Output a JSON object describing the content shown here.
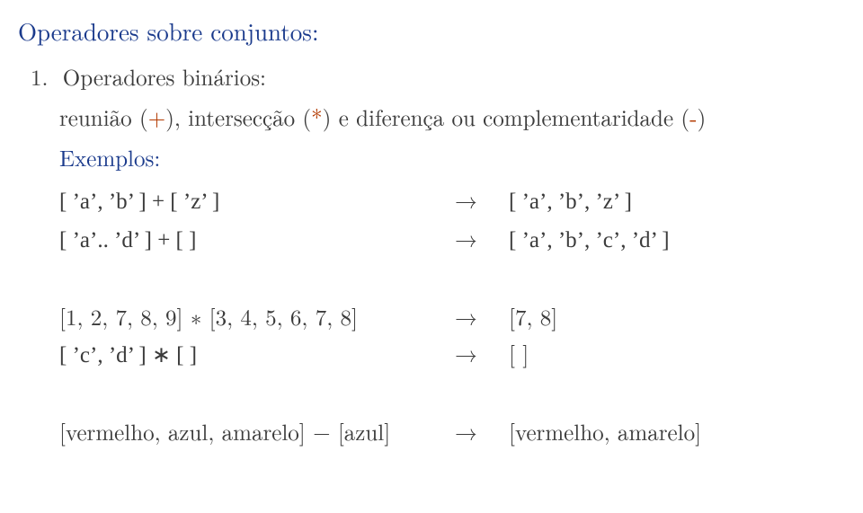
{
  "heading": "Operadores sobre conjuntos:",
  "item_number": "1.",
  "item_title": "Operadores binários:",
  "subline_pre": "reunião (",
  "plus_sym": "+",
  "subline_mid1": "), intersecção (",
  "star_sym": "*",
  "subline_mid2": ") e diferença ou complementaridade (",
  "minus_sym": "-",
  "subline_post": ")",
  "exemplos_label": "Exemplos:",
  "arrow": "→",
  "block1": {
    "rows": [
      {
        "lhs": "[ 'a', 'b' ] + [ 'z' ]",
        "rhs": "[ 'a', 'b', 'z' ]"
      },
      {
        "lhs": "[ 'a'.. 'd' ] + [ ]",
        "rhs": "[ 'a', 'b', 'c', 'd' ]"
      }
    ]
  },
  "block2": {
    "rows": [
      {
        "lhs": "[1, 2, 7, 8, 9] ∗ [3, 4, 5, 6, 7, 8]",
        "rhs": "[7, 8]"
      },
      {
        "lhs": "[ 'c', 'd' ] ∗ [ ]",
        "rhs": "[ ]"
      }
    ]
  },
  "block3": {
    "rows": [
      {
        "lhs": "[vermelho, azul, amarelo] − [azul]",
        "rhs": "[vermelho, amarelo]"
      }
    ]
  },
  "colors": {
    "heading": "#1a3a8c",
    "body": "#3b3b3b",
    "operator": "#b33a00",
    "background": "#ffffff"
  },
  "fonts": {
    "family": "Latin Modern Roman / Computer Modern serif",
    "heading_size_pt": 20,
    "body_size_pt": 18
  }
}
